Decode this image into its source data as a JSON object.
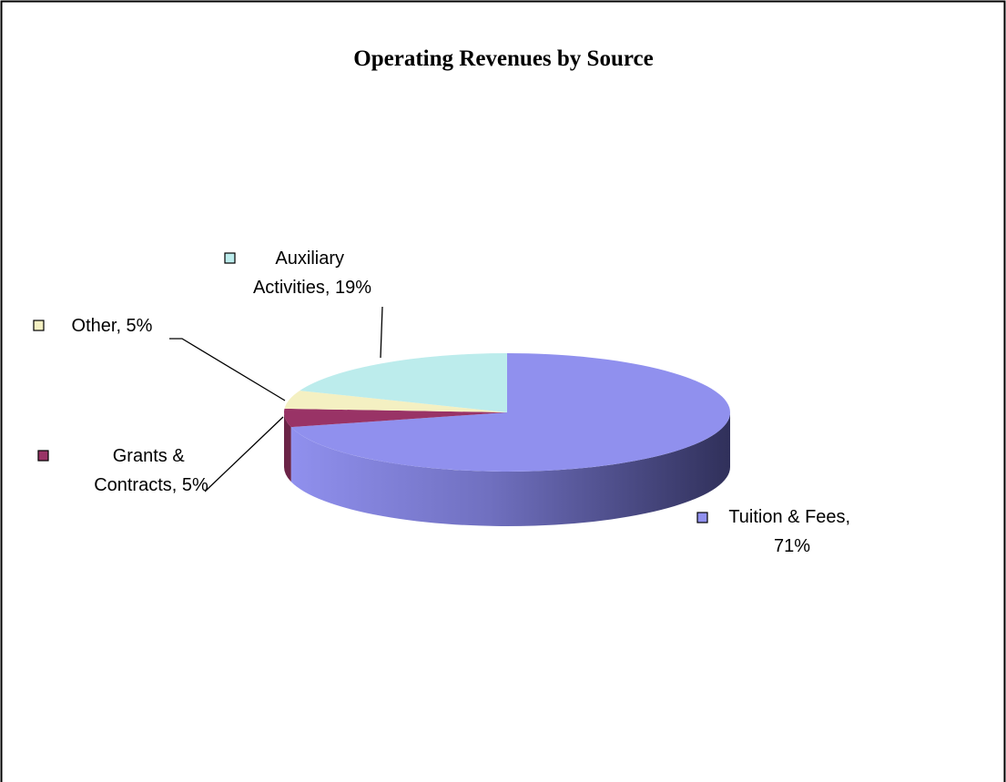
{
  "chart_data": {
    "type": "pie",
    "title": "Operating Revenues by Source",
    "slices": [
      {
        "label": "Tuition & Fees, 71%",
        "value": 71,
        "color": "#9090ee"
      },
      {
        "label": "Grants & Contracts, 5%",
        "value": 5,
        "color": "#993366"
      },
      {
        "label": "Other, 5%",
        "value": 5,
        "color": "#f4f0c2"
      },
      {
        "label": "Auxiliary Activities, 19%",
        "value": 19,
        "color": "#bcecec"
      }
    ]
  }
}
